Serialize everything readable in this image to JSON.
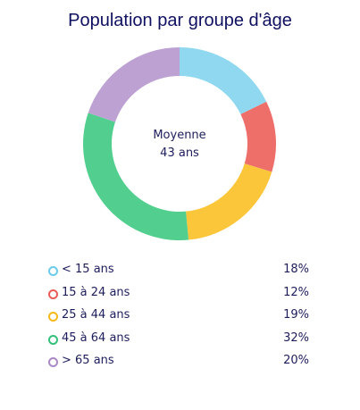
{
  "chart_data": {
    "type": "pie",
    "title": "Population par groupe d'âge",
    "center_text": {
      "line1": "Moyenne",
      "line2": "43 ans"
    },
    "categories": [
      "< 15 ans",
      "15 à 24 ans",
      "25 à 44 ans",
      "45 à 64 ans",
      "> 65 ans"
    ],
    "values": [
      18,
      12,
      19,
      32,
      20
    ],
    "value_labels": [
      "18%",
      "12%",
      "19%",
      "32%",
      "20%"
    ],
    "colors": [
      "#8fd8f0",
      "#ee6f6a",
      "#fcc63a",
      "#52cf8e",
      "#bca1d2"
    ],
    "marker_colors": [
      "#6bcbea",
      "#e85c57",
      "#f7b919",
      "#35c07a",
      "#a98ac6"
    ],
    "legend_position": "bottom",
    "grid": false
  }
}
